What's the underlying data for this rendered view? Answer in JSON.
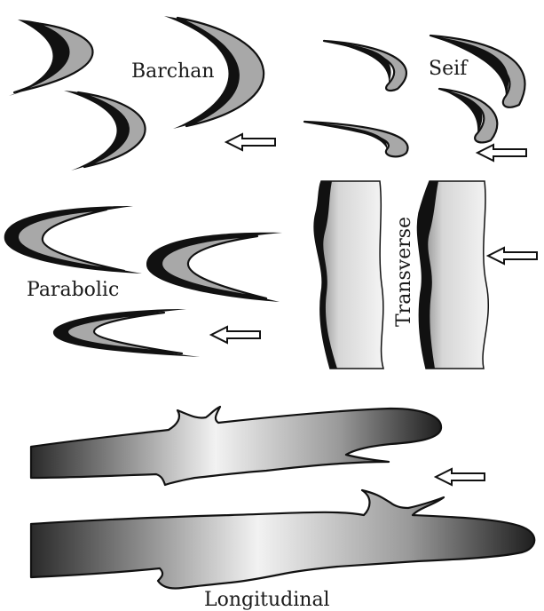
{
  "labels": {
    "barchan": "Barchan",
    "seif": "Seif",
    "parabolic": "Parabolic",
    "transverse": "Transverse",
    "longitudinal": "Longitudinal"
  },
  "colors": {
    "ink": "#111111",
    "dune_fill": "#a8a8a8",
    "dune_light": "#e6e6e6",
    "dune_dark": "#2a2a2a",
    "arrow_fill": "#ffffff"
  },
  "icons": {
    "wind_arrow": "left-arrow-icon"
  }
}
